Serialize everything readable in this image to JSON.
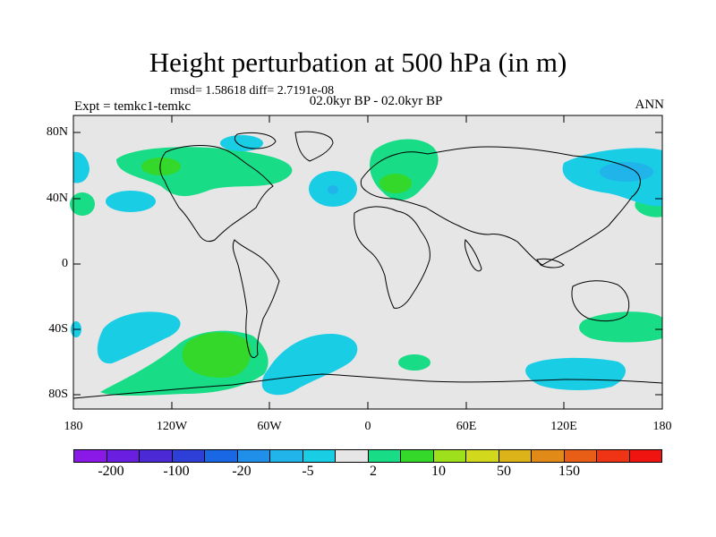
{
  "title": "Height perturbation at 500 hPa (in m)",
  "stats": "rmsd= 1.58618 diff= 2.7191e-08",
  "period": "02.0kyr BP - 02.0kyr BP",
  "experiment": "Expt = temkc1-temkc",
  "season": "ANN",
  "y_ticks": [
    "80N",
    "40N",
    "0",
    "40S",
    "80S"
  ],
  "x_ticks": [
    "180",
    "120W",
    "60W",
    "0",
    "60E",
    "120E",
    "180"
  ],
  "colorbar": {
    "colors": [
      "#8a19e8",
      "#6a1fe0",
      "#4b2ad6",
      "#2e3fd8",
      "#1a67e6",
      "#1f8fea",
      "#21b4ea",
      "#19cde5",
      "#e6e6e6",
      "#18dc86",
      "#34d82a",
      "#9ee01c",
      "#d2d81c",
      "#dcb41a",
      "#e28a18",
      "#e85e16",
      "#ee3414",
      "#ef1410"
    ],
    "labels": [
      "-200",
      "-100",
      "-20",
      "-5",
      "2",
      "10",
      "50",
      "150"
    ]
  },
  "map_colors": {
    "background": "#e6e6e6",
    "neg_light": "#19cde5",
    "neg_mid": "#21b4ea",
    "pos_light": "#18dc86",
    "pos_mid": "#34d82a"
  }
}
